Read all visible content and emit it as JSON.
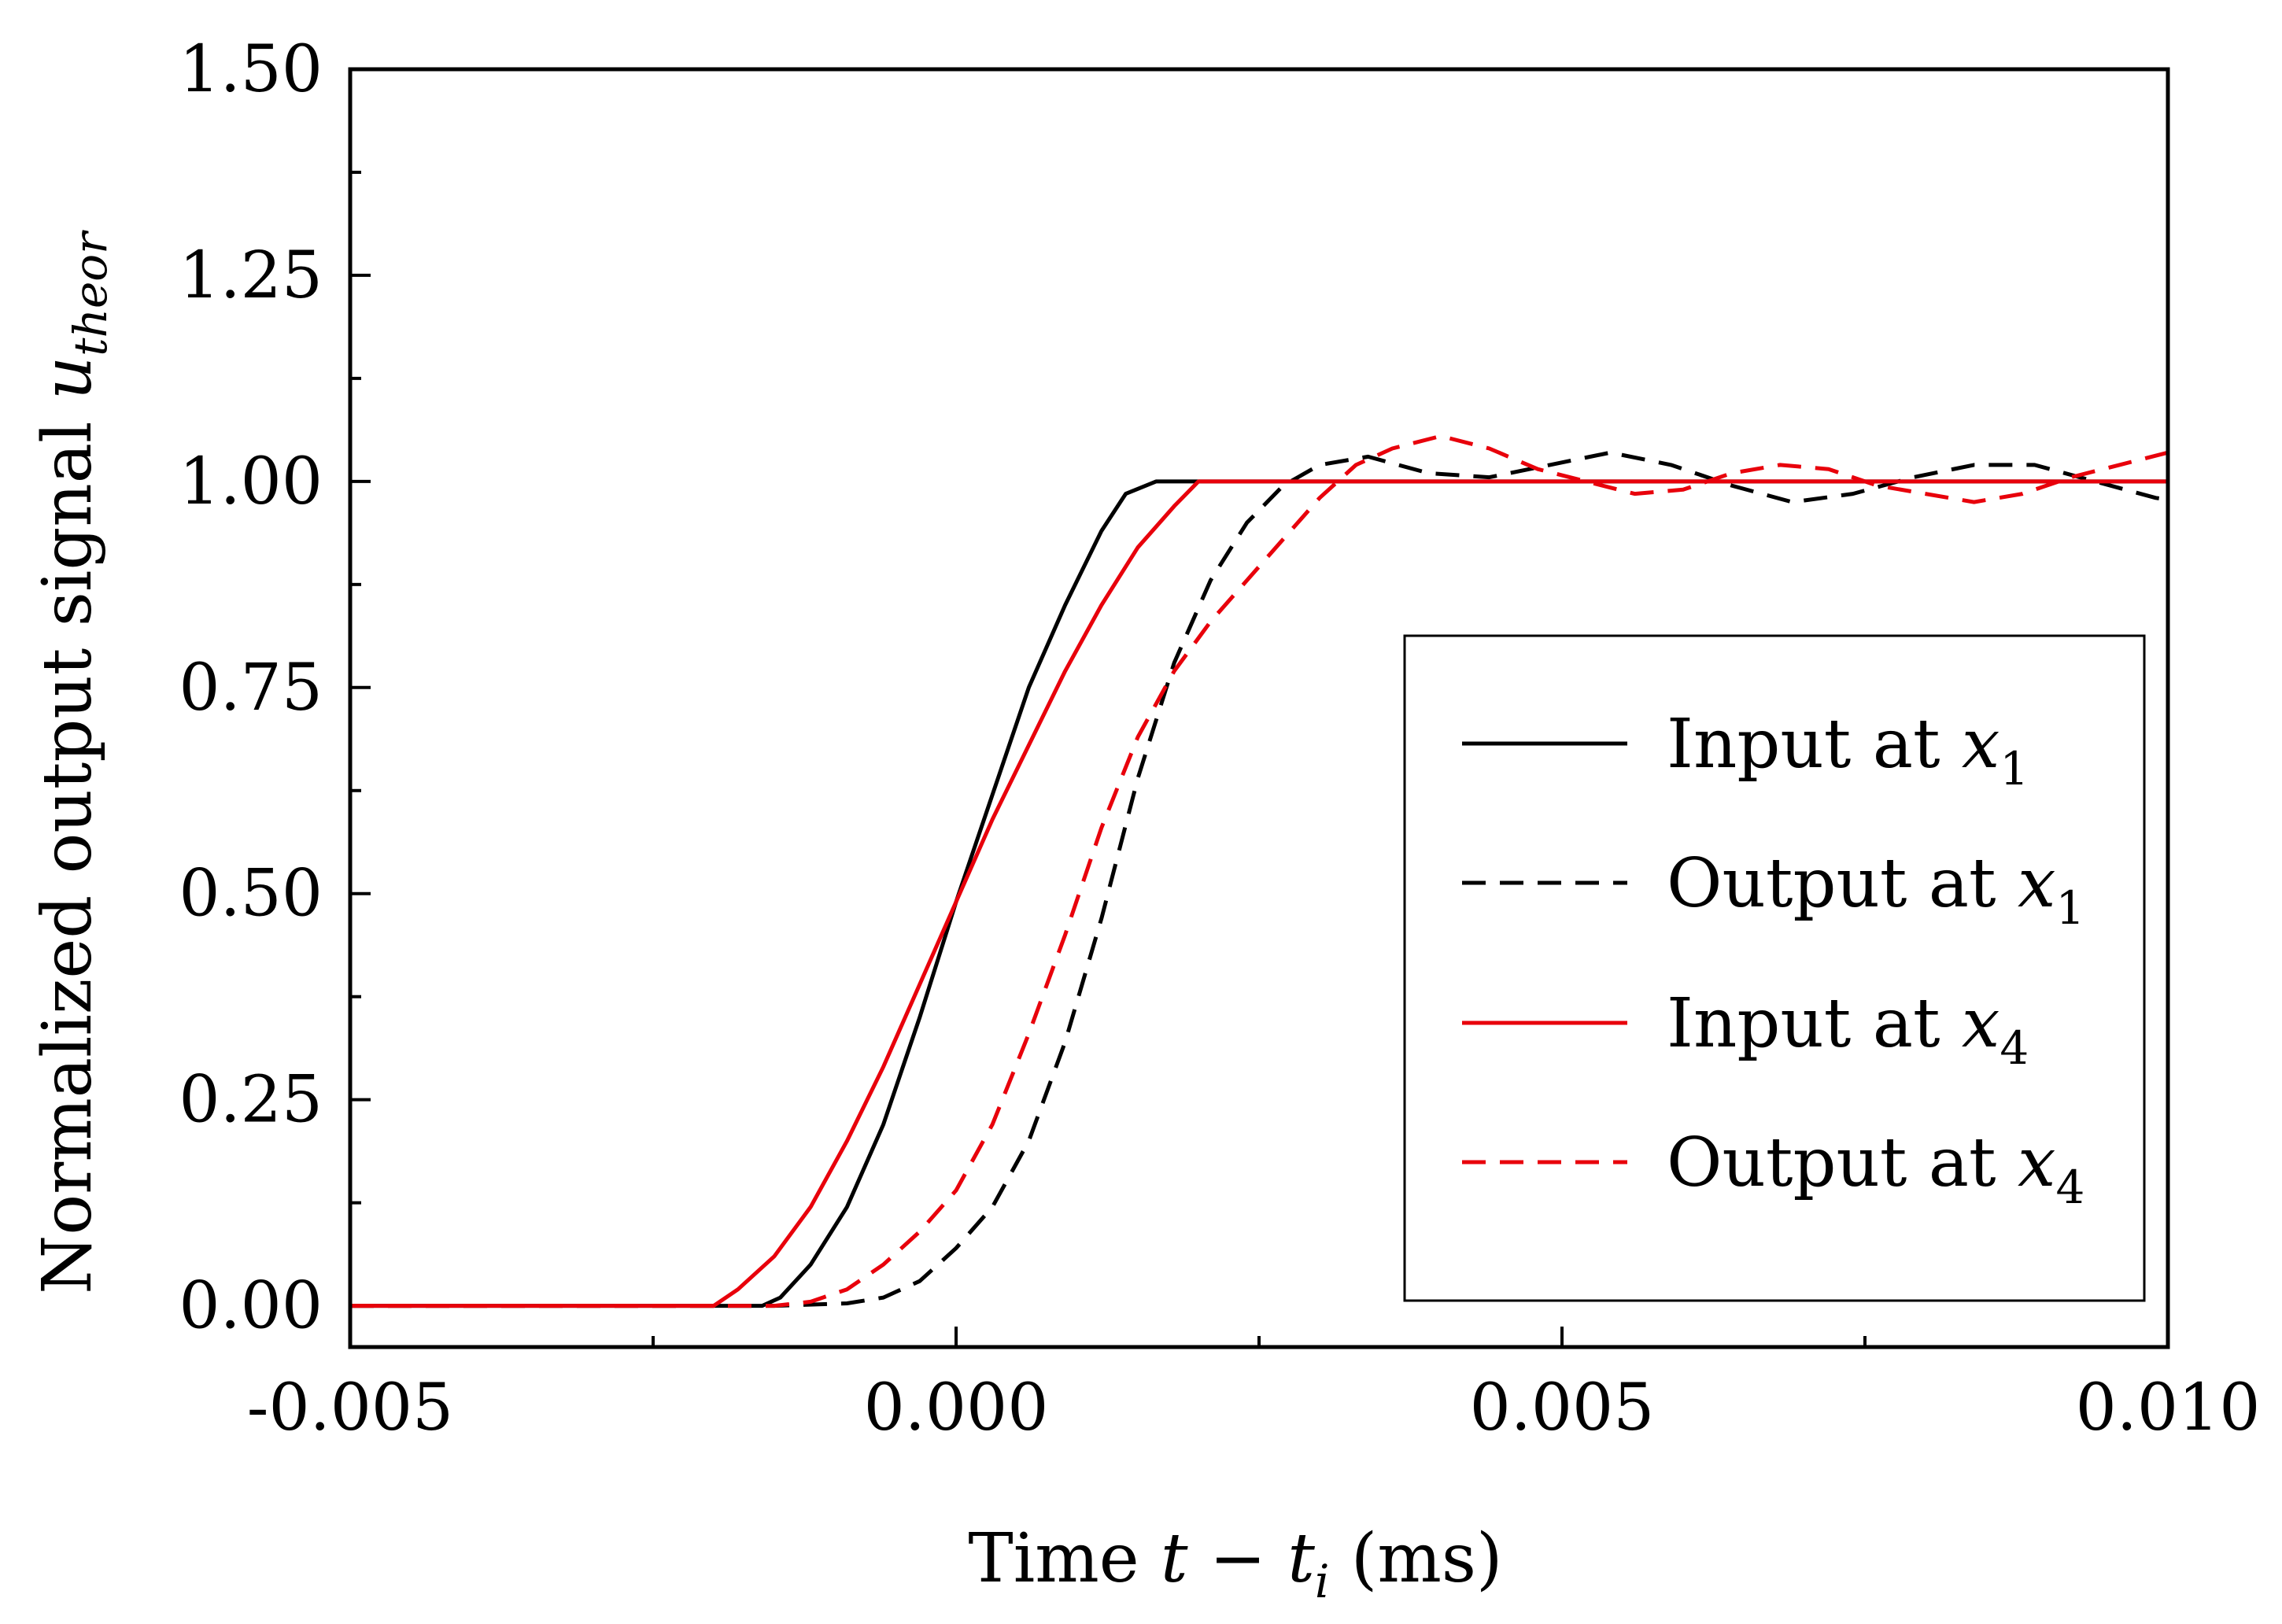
{
  "chart_data": {
    "type": "line",
    "title": "",
    "xlabel": {
      "prefix": "Time ",
      "var": "t",
      "minus": " − ",
      "var2": "t",
      "sub": "i",
      "suffix": " (ms)"
    },
    "ylabel": {
      "prefix": "Normalized output signal ",
      "var": "u",
      "sub": "theor"
    },
    "xlim": [
      -0.005,
      0.01
    ],
    "ylim": [
      -0.05,
      1.5
    ],
    "x_ticks": [
      -0.005,
      0.0,
      0.005,
      0.01
    ],
    "x_tick_labels": [
      "-0.005",
      "0.000",
      "0.005",
      "0.010"
    ],
    "y_ticks": [
      0.0,
      0.25,
      0.5,
      0.75,
      1.0,
      1.25,
      1.5
    ],
    "y_tick_labels": [
      "0.00",
      "0.25",
      "0.50",
      "0.75",
      "1.00",
      "1.25",
      "1.50"
    ],
    "legend_position": "lower-right",
    "series": [
      {
        "name": "Input at x1",
        "legend": {
          "text": "Input at ",
          "var": "x",
          "sub": "1"
        },
        "color": "#000000",
        "dash": "solid",
        "points": [
          [
            -0.005,
            0
          ],
          [
            -0.0016,
            0
          ],
          [
            -0.00145,
            0.01
          ],
          [
            -0.0012,
            0.05
          ],
          [
            -0.0009,
            0.12
          ],
          [
            -0.0006,
            0.22
          ],
          [
            -0.0003,
            0.35
          ],
          [
            0.0,
            0.49
          ],
          [
            0.0003,
            0.62
          ],
          [
            0.0006,
            0.75
          ],
          [
            0.0009,
            0.85
          ],
          [
            0.0012,
            0.94
          ],
          [
            0.0014,
            0.985
          ],
          [
            0.00165,
            1.0
          ],
          [
            0.01,
            1.0
          ]
        ]
      },
      {
        "name": "Output at x1",
        "legend": {
          "text": "Output at ",
          "var": "x",
          "sub": "1"
        },
        "color": "#000000",
        "dash": "dashed",
        "points": [
          [
            -0.005,
            0
          ],
          [
            -0.0015,
            0
          ],
          [
            -0.0009,
            0.003
          ],
          [
            -0.0006,
            0.01
          ],
          [
            -0.0003,
            0.03
          ],
          [
            0.0,
            0.07
          ],
          [
            0.0003,
            0.12
          ],
          [
            0.0006,
            0.2
          ],
          [
            0.0009,
            0.32
          ],
          [
            0.0012,
            0.47
          ],
          [
            0.0015,
            0.64
          ],
          [
            0.0018,
            0.78
          ],
          [
            0.0021,
            0.88
          ],
          [
            0.0024,
            0.95
          ],
          [
            0.0027,
            0.995
          ],
          [
            0.003,
            1.02
          ],
          [
            0.0034,
            1.03
          ],
          [
            0.0039,
            1.01
          ],
          [
            0.0044,
            1.005
          ],
          [
            0.0049,
            1.02
          ],
          [
            0.0054,
            1.035
          ],
          [
            0.0059,
            1.02
          ],
          [
            0.0064,
            0.995
          ],
          [
            0.0069,
            0.975
          ],
          [
            0.0074,
            0.985
          ],
          [
            0.0079,
            1.005
          ],
          [
            0.0084,
            1.02
          ],
          [
            0.0089,
            1.02
          ],
          [
            0.0094,
            1.0
          ],
          [
            0.0099,
            0.98
          ],
          [
            0.01,
            0.978
          ]
        ]
      },
      {
        "name": "Input at x4",
        "legend": {
          "text": "Input at ",
          "var": "x",
          "sub": "4"
        },
        "color": "#e8000b",
        "dash": "solid",
        "points": [
          [
            -0.005,
            0
          ],
          [
            -0.002,
            0
          ],
          [
            -0.0018,
            0.02
          ],
          [
            -0.0015,
            0.06
          ],
          [
            -0.0012,
            0.12
          ],
          [
            -0.0009,
            0.2
          ],
          [
            -0.0006,
            0.29
          ],
          [
            -0.0003,
            0.39
          ],
          [
            0.0,
            0.49
          ],
          [
            0.0003,
            0.59
          ],
          [
            0.0006,
            0.68
          ],
          [
            0.0009,
            0.77
          ],
          [
            0.0012,
            0.85
          ],
          [
            0.0015,
            0.92
          ],
          [
            0.0018,
            0.97
          ],
          [
            0.002,
            1.0
          ],
          [
            0.01,
            1.0
          ]
        ]
      },
      {
        "name": "Output at x4",
        "legend": {
          "text": "Output at ",
          "var": "x",
          "sub": "4"
        },
        "color": "#e8000b",
        "dash": "dashed",
        "points": [
          [
            -0.005,
            0
          ],
          [
            -0.0015,
            0
          ],
          [
            -0.0012,
            0.005
          ],
          [
            -0.0009,
            0.02
          ],
          [
            -0.0006,
            0.05
          ],
          [
            -0.0003,
            0.09
          ],
          [
            0.0,
            0.14
          ],
          [
            0.0003,
            0.22
          ],
          [
            0.0006,
            0.33
          ],
          [
            0.0009,
            0.45
          ],
          [
            0.0012,
            0.58
          ],
          [
            0.0015,
            0.69
          ],
          [
            0.0018,
            0.77
          ],
          [
            0.0021,
            0.83
          ],
          [
            0.0024,
            0.88
          ],
          [
            0.0027,
            0.93
          ],
          [
            0.003,
            0.98
          ],
          [
            0.0033,
            1.02
          ],
          [
            0.0036,
            1.04
          ],
          [
            0.004,
            1.055
          ],
          [
            0.0044,
            1.04
          ],
          [
            0.0048,
            1.015
          ],
          [
            0.0052,
            1.0
          ],
          [
            0.0056,
            0.985
          ],
          [
            0.006,
            0.99
          ],
          [
            0.0064,
            1.01
          ],
          [
            0.0068,
            1.02
          ],
          [
            0.0072,
            1.015
          ],
          [
            0.0076,
            0.995
          ],
          [
            0.008,
            0.985
          ],
          [
            0.0084,
            0.975
          ],
          [
            0.0088,
            0.985
          ],
          [
            0.0092,
            1.005
          ],
          [
            0.0096,
            1.02
          ],
          [
            0.01,
            1.035
          ]
        ]
      }
    ]
  }
}
